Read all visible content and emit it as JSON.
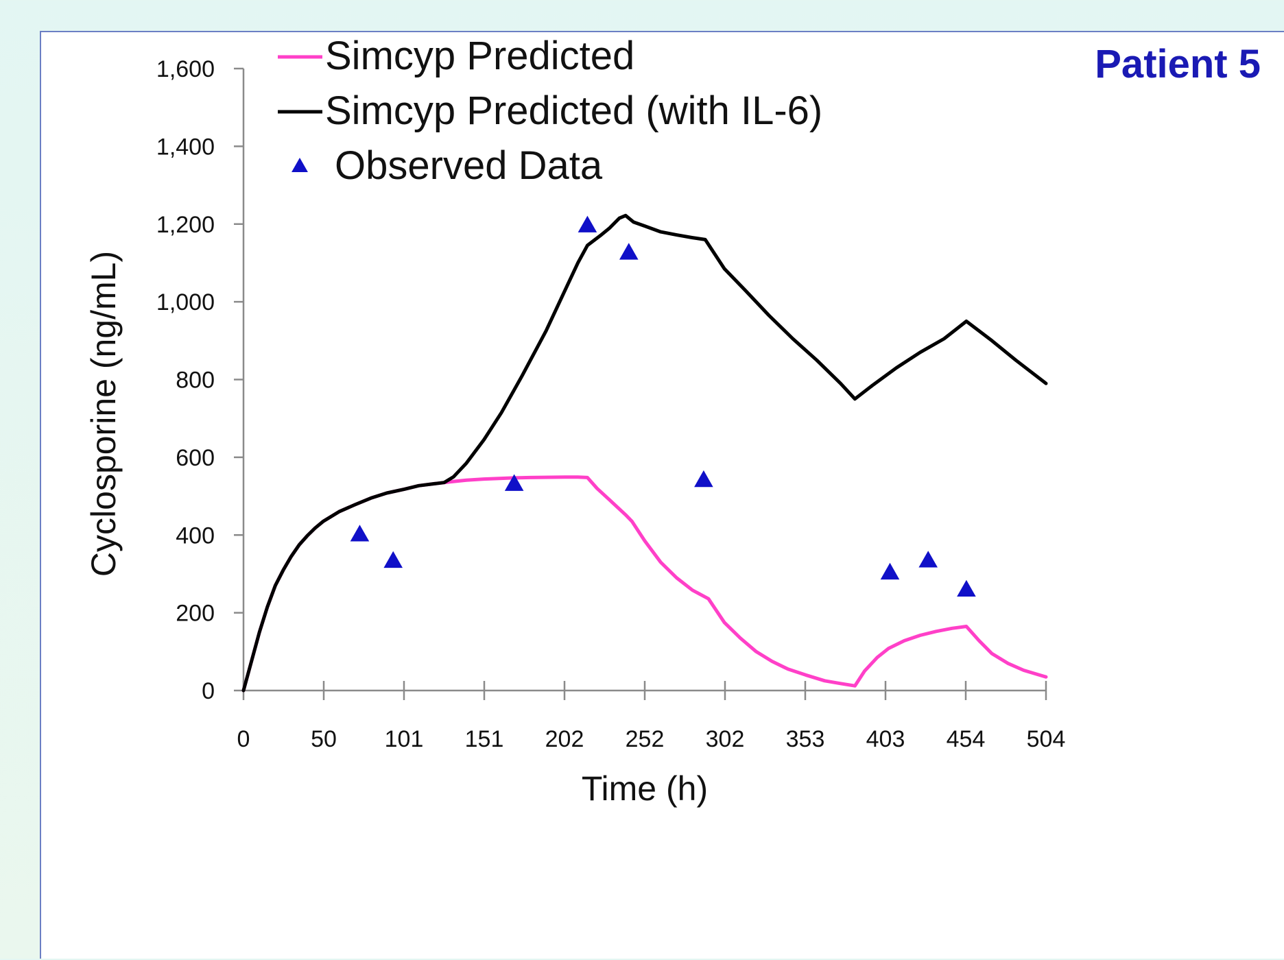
{
  "chart_data": {
    "type": "line",
    "title": "",
    "annotation": "Patient 5",
    "xlabel": "Time (h)",
    "ylabel": "Cyclosporine (ng/mL)",
    "xlim": [
      0,
      504
    ],
    "ylim": [
      0,
      1600
    ],
    "x_tick_labels": [
      "0",
      "50",
      "101",
      "151",
      "202",
      "252",
      "302",
      "353",
      "403",
      "454",
      "504"
    ],
    "y_tick_labels": [
      "0",
      "200",
      "400",
      "600",
      "800",
      "1,000",
      "1,200",
      "1,400",
      "1,600"
    ],
    "y_ticks": [
      0,
      200,
      400,
      600,
      800,
      1000,
      1200,
      1400,
      1600
    ],
    "legend_position": "top",
    "grid": false,
    "series": [
      {
        "name": "Simcyp Predicted",
        "kind": "line",
        "color": "#ff40c8",
        "points": [
          [
            0,
            0
          ],
          [
            5,
            75
          ],
          [
            10,
            150
          ],
          [
            15,
            215
          ],
          [
            20,
            270
          ],
          [
            25,
            310
          ],
          [
            30,
            345
          ],
          [
            35,
            375
          ],
          [
            40,
            398
          ],
          [
            45,
            418
          ],
          [
            50,
            435
          ],
          [
            60,
            460
          ],
          [
            70,
            478
          ],
          [
            80,
            495
          ],
          [
            90,
            508
          ],
          [
            101,
            518
          ],
          [
            110,
            527
          ],
          [
            120,
            532
          ],
          [
            130,
            537
          ],
          [
            140,
            541
          ],
          [
            151,
            544
          ],
          [
            170,
            547
          ],
          [
            180,
            548
          ],
          [
            202,
            549
          ],
          [
            210,
            549
          ],
          [
            216,
            548
          ],
          [
            222,
            520
          ],
          [
            230,
            490
          ],
          [
            240,
            452
          ],
          [
            244,
            435
          ],
          [
            252,
            385
          ],
          [
            262,
            330
          ],
          [
            272,
            290
          ],
          [
            282,
            258
          ],
          [
            292,
            236
          ],
          [
            302,
            175
          ],
          [
            312,
            135
          ],
          [
            322,
            100
          ],
          [
            332,
            75
          ],
          [
            342,
            55
          ],
          [
            353,
            40
          ],
          [
            365,
            25
          ],
          [
            375,
            18
          ],
          [
            384,
            12
          ],
          [
            390,
            50
          ],
          [
            398,
            85
          ],
          [
            405,
            108
          ],
          [
            415,
            128
          ],
          [
            425,
            142
          ],
          [
            435,
            152
          ],
          [
            445,
            160
          ],
          [
            454,
            165
          ],
          [
            462,
            128
          ],
          [
            470,
            95
          ],
          [
            480,
            70
          ],
          [
            490,
            52
          ],
          [
            504,
            35
          ]
        ]
      },
      {
        "name": "Simcyp Predicted (with IL-6)",
        "kind": "line",
        "color": "#000000",
        "points": [
          [
            0,
            0
          ],
          [
            5,
            75
          ],
          [
            10,
            150
          ],
          [
            15,
            215
          ],
          [
            20,
            270
          ],
          [
            25,
            310
          ],
          [
            30,
            345
          ],
          [
            35,
            375
          ],
          [
            40,
            398
          ],
          [
            45,
            418
          ],
          [
            50,
            435
          ],
          [
            60,
            460
          ],
          [
            70,
            478
          ],
          [
            80,
            495
          ],
          [
            90,
            508
          ],
          [
            101,
            518
          ],
          [
            110,
            527
          ],
          [
            120,
            532
          ],
          [
            126,
            535
          ],
          [
            132,
            550
          ],
          [
            140,
            585
          ],
          [
            151,
            645
          ],
          [
            162,
            715
          ],
          [
            175,
            810
          ],
          [
            190,
            925
          ],
          [
            202,
            1030
          ],
          [
            210,
            1100
          ],
          [
            216,
            1145
          ],
          [
            224,
            1170
          ],
          [
            230,
            1190
          ],
          [
            236,
            1215
          ],
          [
            240,
            1222
          ],
          [
            245,
            1205
          ],
          [
            252,
            1195
          ],
          [
            262,
            1180
          ],
          [
            272,
            1172
          ],
          [
            282,
            1165
          ],
          [
            290,
            1160
          ],
          [
            302,
            1085
          ],
          [
            315,
            1030
          ],
          [
            330,
            965
          ],
          [
            345,
            905
          ],
          [
            360,
            850
          ],
          [
            375,
            790
          ],
          [
            384,
            750
          ],
          [
            395,
            785
          ],
          [
            410,
            830
          ],
          [
            425,
            870
          ],
          [
            440,
            905
          ],
          [
            454,
            950
          ],
          [
            470,
            900
          ],
          [
            485,
            850
          ],
          [
            504,
            790
          ]
        ]
      },
      {
        "name": "Observed Data",
        "kind": "scatter",
        "color": "#1010c8",
        "points": [
          [
            73,
            400
          ],
          [
            94,
            332
          ],
          [
            170,
            530
          ],
          [
            216,
            1195
          ],
          [
            242,
            1125
          ],
          [
            289,
            540
          ],
          [
            406,
            302
          ],
          [
            430,
            333
          ],
          [
            454,
            258
          ]
        ]
      }
    ]
  }
}
